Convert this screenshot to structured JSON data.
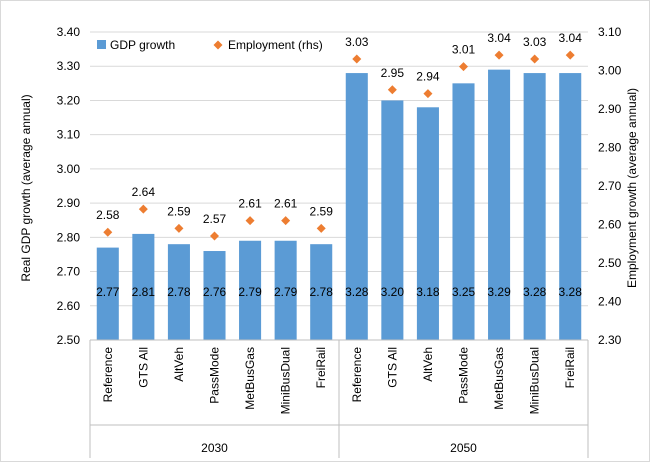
{
  "chart_data": {
    "type": "bar",
    "groups": [
      {
        "label": "2030",
        "categories": [
          "Reference",
          "GTS All",
          "AltVeh",
          "PassMode",
          "MetBusGas",
          "MiniBusDual",
          "FreiRail"
        ]
      },
      {
        "label": "2050",
        "categories": [
          "Reference",
          "GTS All",
          "AltVeh",
          "PassMode",
          "MetBusGas",
          "MiniBusDual",
          "FreiRail"
        ]
      }
    ],
    "series": [
      {
        "name": "GDP growth",
        "kind": "bar",
        "axis": "left",
        "color": "#5b9bd5",
        "values": [
          2.77,
          2.81,
          2.78,
          2.76,
          2.79,
          2.79,
          2.78,
          3.28,
          3.2,
          3.18,
          3.25,
          3.29,
          3.28,
          3.28
        ],
        "labels": [
          "2.77",
          "2.81",
          "2.78",
          "2.76",
          "2.79",
          "2.79",
          "2.78",
          "3.28",
          "3.20",
          "3.18",
          "3.25",
          "3.29",
          "3.28",
          "3.28"
        ]
      },
      {
        "name": "Employment (rhs)",
        "kind": "marker",
        "axis": "right",
        "color": "#ed7d31",
        "values": [
          2.58,
          2.64,
          2.59,
          2.57,
          2.61,
          2.61,
          2.59,
          3.03,
          2.95,
          2.94,
          3.01,
          3.04,
          3.03,
          3.04
        ],
        "labels": [
          "2.58",
          "2.64",
          "2.59",
          "2.57",
          "2.61",
          "2.61",
          "2.59",
          "3.03",
          "2.95",
          "2.94",
          "3.01",
          "3.04",
          "3.03",
          "3.04"
        ]
      }
    ],
    "y_left": {
      "label": "Real GDP growth (average annual)",
      "min": 2.5,
      "max": 3.4,
      "step": 0.1,
      "ticks": [
        "2.50",
        "2.60",
        "2.70",
        "2.80",
        "2.90",
        "3.00",
        "3.10",
        "3.20",
        "3.30",
        "3.40"
      ]
    },
    "y_right": {
      "label": "Employment growth (average annual)",
      "min": 2.3,
      "max": 3.1,
      "step": 0.1,
      "ticks": [
        "2.30",
        "2.40",
        "2.50",
        "2.60",
        "2.70",
        "2.80",
        "2.90",
        "3.00",
        "3.10"
      ]
    },
    "grid": true,
    "legend_position": "top-left"
  }
}
